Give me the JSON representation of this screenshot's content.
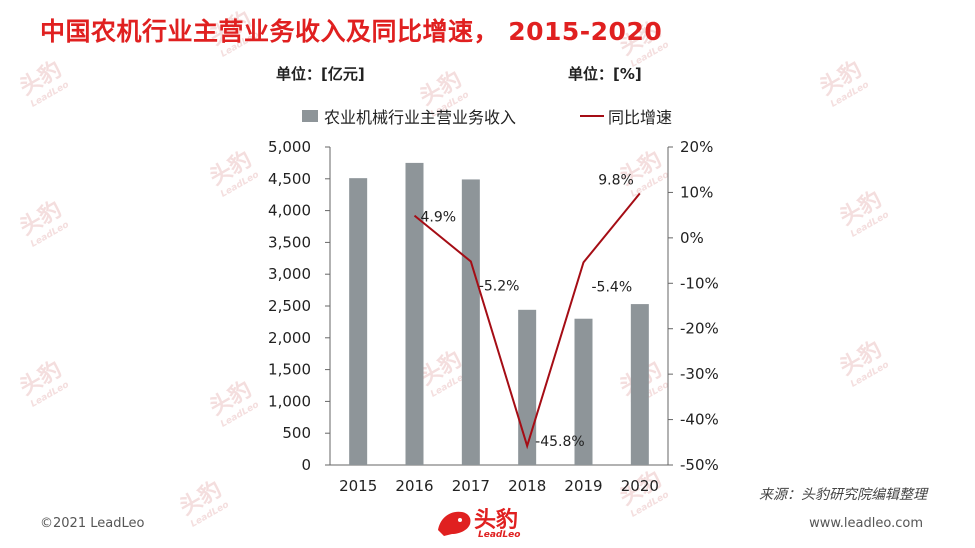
{
  "title": "中国农机行业主营业务收入及同比增速， 2015-2020",
  "unit_left": "单位：[亿元]",
  "unit_right": "单位：[%]",
  "source": "来源：头豹研究院编辑整理",
  "footer_left": "©2021 LeadLeo",
  "footer_right": "www.leadleo.com",
  "logo": {
    "text": "头豹",
    "sub": "LeadLeo"
  },
  "watermark": {
    "text": "头豹",
    "sub": "LeadLeo"
  },
  "colors": {
    "title": "#e02020",
    "bar": "#8e9599",
    "line": "#a50d15"
  },
  "chart_data": {
    "type": "bar+line",
    "categories": [
      "2015",
      "2016",
      "2017",
      "2018",
      "2019",
      "2020"
    ],
    "series": [
      {
        "name": "农业机械行业主营业务收入",
        "type": "bar",
        "axis": "left",
        "values": [
          4510,
          4750,
          4490,
          2440,
          2300,
          2530
        ]
      },
      {
        "name": "同比增速",
        "type": "line",
        "axis": "right",
        "values": [
          null,
          4.9,
          -5.2,
          -45.8,
          -5.4,
          9.8
        ],
        "labels": [
          "",
          "4.9%",
          "-5.2%",
          "-45.8%",
          "-5.4%",
          "9.8%"
        ]
      }
    ],
    "left_axis": {
      "min": 0,
      "max": 5000,
      "ticks": [
        "0",
        "500",
        "1,000",
        "1,500",
        "2,000",
        "2,500",
        "3,000",
        "3,500",
        "4,000",
        "4,500",
        "5,000"
      ]
    },
    "right_axis": {
      "min": -50,
      "max": 20,
      "ticks": [
        "-50%",
        "-40%",
        "-30%",
        "-20%",
        "-10%",
        "0%",
        "10%",
        "20%"
      ]
    },
    "legend_position": "top"
  }
}
